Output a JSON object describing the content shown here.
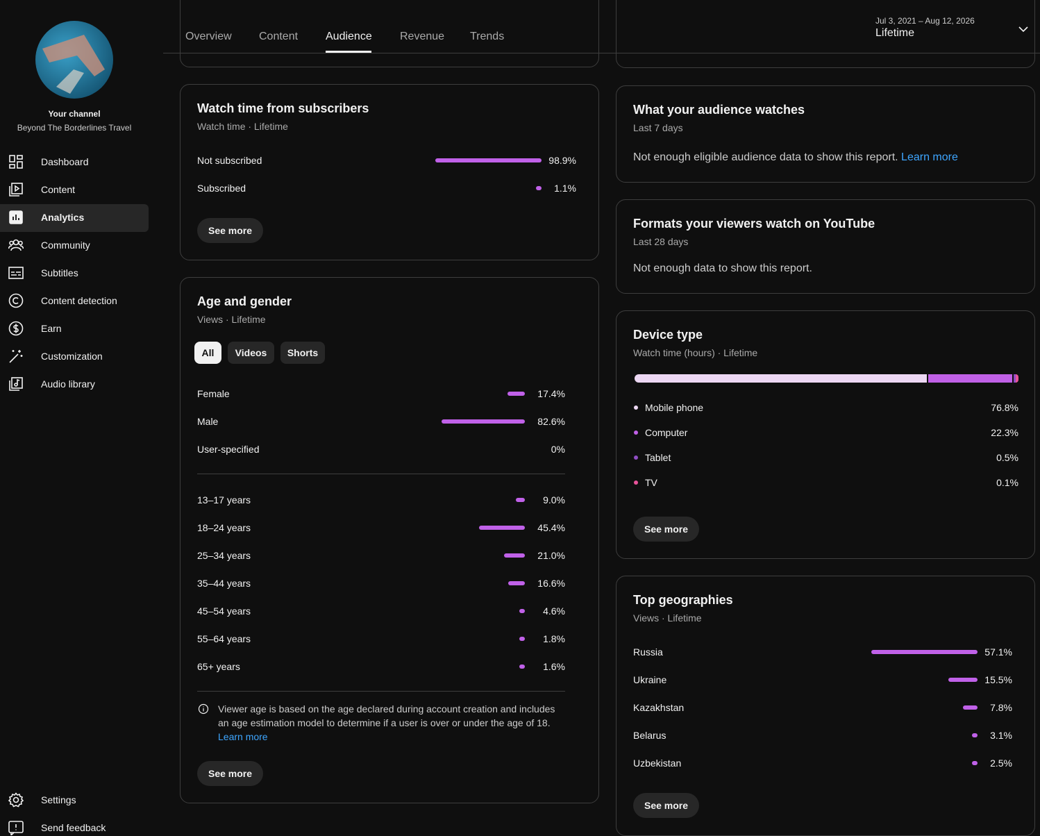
{
  "sidebar": {
    "channel_label": "Your channel",
    "channel_name": "Beyond The Borderlines Travel",
    "nav": [
      "Dashboard",
      "Content",
      "Analytics",
      "Community",
      "Subtitles",
      "Content detection",
      "Earn",
      "Customization",
      "Audio library"
    ],
    "footer_nav": [
      "Settings",
      "Send feedback"
    ]
  },
  "tabs": [
    "Overview",
    "Content",
    "Audience",
    "Revenue",
    "Trends"
  ],
  "date_range": {
    "range": "Jul 3, 2021 – Aug 12, 2026",
    "period": "Lifetime"
  },
  "subscribers": {
    "title": "Watch time from subscribers",
    "subtitle": "Watch time · Lifetime",
    "rows": [
      {
        "label": "Not subscribed",
        "value": 98.9,
        "value_label": "98.9%"
      },
      {
        "label": "Subscribed",
        "value": 1.1,
        "value_label": "1.1%"
      }
    ],
    "button": "See more"
  },
  "age_gender": {
    "title": "Age and gender",
    "subtitle": "Views · Lifetime",
    "filters": [
      "All",
      "Videos",
      "Shorts"
    ],
    "gender": [
      {
        "label": "Female",
        "value": 17.4,
        "value_label": "17.4%"
      },
      {
        "label": "Male",
        "value": 82.6,
        "value_label": "82.6%"
      },
      {
        "label": "User-specified",
        "value": 0,
        "value_label": "0%"
      }
    ],
    "ages": [
      {
        "label": "13–17 years",
        "value": 9.0,
        "value_label": "9.0%"
      },
      {
        "label": "18–24 years",
        "value": 45.4,
        "value_label": "45.4%"
      },
      {
        "label": "25–34 years",
        "value": 21.0,
        "value_label": "21.0%"
      },
      {
        "label": "35–44 years",
        "value": 16.6,
        "value_label": "16.6%"
      },
      {
        "label": "45–54 years",
        "value": 4.6,
        "value_label": "4.6%"
      },
      {
        "label": "55–64 years",
        "value": 1.8,
        "value_label": "1.8%"
      },
      {
        "label": "65+ years",
        "value": 1.6,
        "value_label": "1.6%"
      }
    ],
    "note": "Viewer age is based on the age declared during account creation and includes an age estimation model to determine if a user is over or under the age of 18.",
    "note_link": "Learn more",
    "button": "See more"
  },
  "audience_watches": {
    "title": "What your audience watches",
    "subtitle": "Last 7 days",
    "message": "Not enough eligible audience data to show this report.",
    "link": "Learn more"
  },
  "formats": {
    "title": "Formats your viewers watch on YouTube",
    "subtitle": "Last 28 days",
    "message": "Not enough data to show this report."
  },
  "device_type": {
    "title": "Device type",
    "subtitle": "Watch time (hours) · Lifetime",
    "rows": [
      {
        "label": "Mobile phone",
        "value": 76.8,
        "value_label": "76.8%",
        "color": "#ecd7f3"
      },
      {
        "label": "Computer",
        "value": 22.3,
        "value_label": "22.3%",
        "color": "#c060e6"
      },
      {
        "label": "Tablet",
        "value": 0.5,
        "value_label": "0.5%",
        "color": "#8f4ec4"
      },
      {
        "label": "TV",
        "value": 0.1,
        "value_label": "0.1%",
        "color": "#e8539a"
      }
    ],
    "button": "See more"
  },
  "geographies": {
    "title": "Top geographies",
    "subtitle": "Views · Lifetime",
    "rows": [
      {
        "label": "Russia",
        "value": 57.1,
        "value_label": "57.1%"
      },
      {
        "label": "Ukraine",
        "value": 15.5,
        "value_label": "15.5%"
      },
      {
        "label": "Kazakhstan",
        "value": 7.8,
        "value_label": "7.8%"
      },
      {
        "label": "Belarus",
        "value": 3.1,
        "value_label": "3.1%"
      },
      {
        "label": "Uzbekistan",
        "value": 2.5,
        "value_label": "2.5%"
      }
    ],
    "button": "See more"
  }
}
